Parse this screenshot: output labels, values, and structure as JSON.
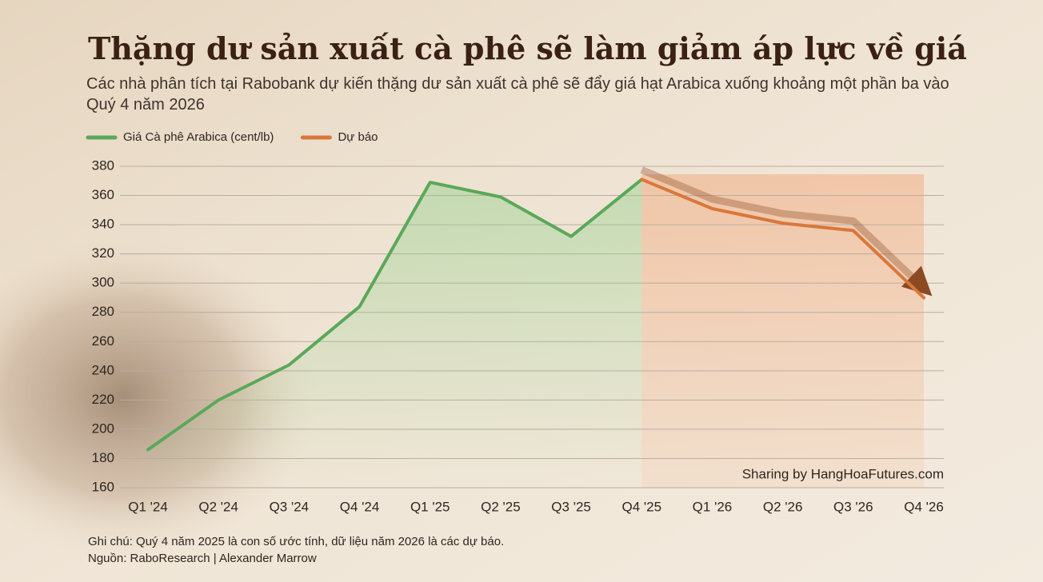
{
  "chart_data": {
    "type": "line",
    "title": "Thặng dư sản xuất cà phê sẽ làm giảm áp lực về giá",
    "subtitle": "Các nhà phân tích tại Rabobank dự kiến thặng dư sản xuất cà phê sẽ đẩy giá hạt Arabica xuống khoảng một phần ba vào Quý 4 năm 2026",
    "categories": [
      "Q1 '24",
      "Q2 '24",
      "Q3 '24",
      "Q4 '24",
      "Q1 '25",
      "Q2 '25",
      "Q3 '25",
      "Q4 '25",
      "Q1 '26",
      "Q2 '26",
      "Q3 '26",
      "Q4 '26"
    ],
    "series": [
      {
        "name": "Giá Cà phê Arabica (cent/lb)",
        "color": "#5aa85a",
        "values": [
          186,
          220,
          244,
          284,
          369,
          359,
          332,
          371,
          null,
          null,
          null,
          null
        ]
      },
      {
        "name": "Dự báo",
        "color": "#d9773a",
        "values": [
          null,
          null,
          null,
          null,
          null,
          null,
          null,
          371,
          351,
          341,
          336,
          290
        ]
      }
    ],
    "ylim": [
      160,
      380
    ],
    "yticks": [
      160,
      180,
      200,
      220,
      240,
      260,
      280,
      300,
      320,
      340,
      360,
      380
    ],
    "grid": true,
    "watermark": "Sharing by HangHoaFutures.com",
    "note": "Ghi chú: Quý 4 năm 2025 là con số ước tính, dữ liệu năm 2026 là các dự báo.",
    "source": "Nguồn: RaboResearch | Alexander Marrow"
  }
}
